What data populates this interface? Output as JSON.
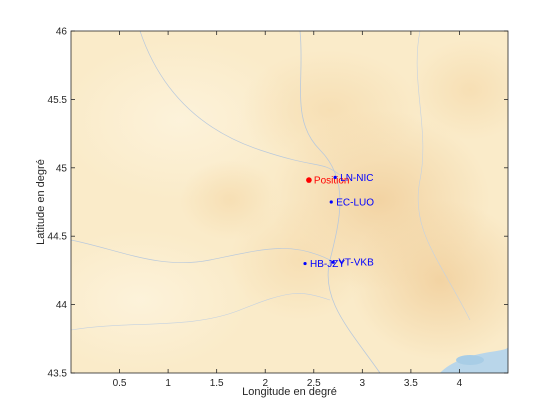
{
  "chart_data": {
    "type": "scatter",
    "title": "",
    "xlabel": "Longitude en degré",
    "ylabel": "Latitude en degré",
    "xlim": [
      0,
      4.5
    ],
    "ylim": [
      43.5,
      46
    ],
    "xticks": [
      "0.5",
      "1",
      "1.5",
      "2",
      "2.5",
      "3",
      "3.5",
      "4"
    ],
    "yticks": [
      "43.5",
      "44",
      "44.5",
      "45",
      "45.5",
      "46"
    ],
    "grid": false,
    "background": "map-terrain",
    "series": [
      {
        "color": "#ff0000",
        "points": [
          {
            "label": "Position",
            "x": 2.45,
            "y": 44.91
          }
        ]
      },
      {
        "color": "#0000ff",
        "points": [
          {
            "label": "LN-NIC",
            "x": 2.72,
            "y": 44.93
          },
          {
            "label": "EC-LUO",
            "x": 2.68,
            "y": 44.75
          },
          {
            "label": "HB-JZY",
            "x": 2.41,
            "y": 44.3
          },
          {
            "label": "YT-VKB",
            "x": 2.7,
            "y": 44.31
          }
        ]
      }
    ]
  }
}
